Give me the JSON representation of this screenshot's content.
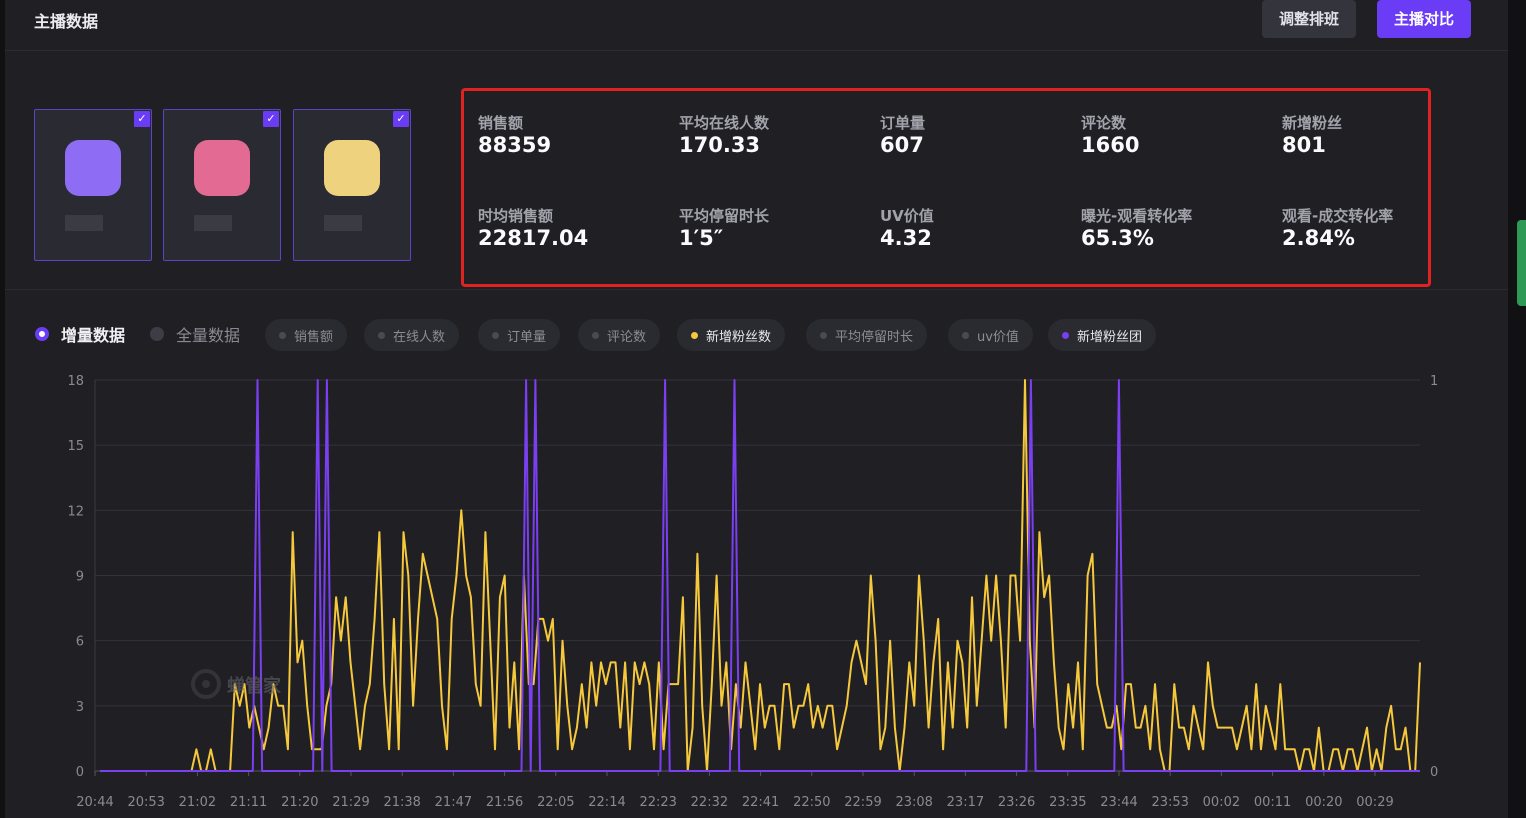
{
  "header": {
    "title": "主播数据",
    "adjust_label": "调整排班",
    "compare_label": "主播对比"
  },
  "anchors": [
    {
      "avatar_color": "#8e6cf3",
      "checked": "✓"
    },
    {
      "avatar_color": "#e36a93",
      "checked": "✓"
    },
    {
      "avatar_color": "#efd27e",
      "checked": "✓"
    }
  ],
  "stats": [
    {
      "label": "销售额",
      "value": "88359"
    },
    {
      "label": "平均在线人数",
      "value": "170.33"
    },
    {
      "label": "订单量",
      "value": "607"
    },
    {
      "label": "评论数",
      "value": "1660"
    },
    {
      "label": "新增粉丝",
      "value": "801"
    },
    {
      "label": "时均销售额",
      "value": "22817.04"
    },
    {
      "label": "平均停留时长",
      "value": "1′5″"
    },
    {
      "label": "UV价值",
      "value": "4.32"
    },
    {
      "label": "曝光-观看转化率",
      "value": "65.3%"
    },
    {
      "label": "观看-成交转化率",
      "value": "2.84%"
    }
  ],
  "mode": {
    "incremental": "增量数据",
    "full": "全量数据",
    "selected": "incremental"
  },
  "metrics": [
    {
      "label": "销售额",
      "active": false,
      "color": "#4a4a52"
    },
    {
      "label": "在线人数",
      "active": false,
      "color": "#4a4a52"
    },
    {
      "label": "订单量",
      "active": false,
      "color": "#4a4a52"
    },
    {
      "label": "评论数",
      "active": false,
      "color": "#4a4a52"
    },
    {
      "label": "新增粉丝数",
      "active": true,
      "color": "#f6c83c"
    },
    {
      "label": "平均停留时长",
      "active": false,
      "color": "#4a4a52"
    },
    {
      "label": "uv价值",
      "active": false,
      "color": "#4a4a52"
    },
    {
      "label": "新增粉丝团",
      "active": true,
      "color": "#7b3ff2"
    }
  ],
  "watermark": "蝉管家",
  "chart_data": {
    "type": "line",
    "x_tick_labels": [
      "20:44",
      "20:53",
      "21:02",
      "21:11",
      "21:20",
      "21:29",
      "21:38",
      "21:47",
      "21:56",
      "22:05",
      "22:14",
      "22:23",
      "22:32",
      "22:41",
      "22:50",
      "22:59",
      "23:08",
      "23:17",
      "23:26",
      "23:35",
      "23:44",
      "23:53",
      "00:02",
      "00:11",
      "00:20",
      "00:29"
    ],
    "y_left": {
      "ticks": [
        "0",
        "3",
        "6",
        "9",
        "12",
        "15",
        "18"
      ],
      "range": [
        0,
        18
      ]
    },
    "y_right": {
      "ticks": [
        "0",
        "1"
      ],
      "range": [
        0,
        1
      ]
    },
    "grid": true,
    "series": [
      {
        "axis": "left",
        "color": "#f6c83c",
        "values": [
          0,
          0,
          0,
          0,
          0,
          0,
          0,
          0,
          0,
          0,
          0,
          0,
          0,
          0,
          0,
          0,
          0,
          0,
          0,
          0,
          1,
          0,
          0,
          1,
          0,
          0,
          0,
          0,
          4,
          3,
          4,
          2,
          3,
          2,
          1,
          2,
          4,
          3,
          3,
          1,
          11,
          5,
          6,
          3,
          1,
          1,
          1,
          3,
          4,
          8,
          6,
          8,
          5,
          3,
          1,
          3,
          4,
          7,
          11,
          4,
          1,
          7,
          1,
          11,
          9,
          3,
          7,
          10,
          9,
          8,
          7,
          3,
          1,
          7,
          9,
          12,
          9,
          8,
          4,
          3,
          11,
          6,
          1,
          8,
          9,
          2,
          5,
          1,
          9,
          4,
          4,
          7,
          7,
          6,
          7,
          1,
          6,
          3,
          1,
          2,
          4,
          2,
          5,
          3,
          5,
          4,
          5,
          5,
          2,
          5,
          1,
          5,
          4,
          5,
          4,
          1,
          5,
          1,
          4,
          4,
          4,
          8,
          0,
          2,
          10,
          3,
          0,
          4,
          9,
          3,
          5,
          1,
          4,
          2,
          5,
          3,
          1,
          4,
          2,
          3,
          3,
          1,
          4,
          4,
          2,
          3,
          3,
          4,
          2,
          3,
          2,
          3,
          3,
          1,
          2,
          3,
          5,
          6,
          5,
          4,
          9,
          6,
          1,
          2,
          6,
          2,
          0,
          2,
          5,
          3,
          9,
          6,
          2,
          5,
          7,
          1,
          5,
          2,
          6,
          5,
          2,
          8,
          3,
          6,
          9,
          6,
          9,
          6,
          2,
          9,
          9,
          6,
          18,
          6,
          2,
          11,
          8,
          9,
          5,
          2,
          1,
          4,
          2,
          5,
          1,
          9,
          10,
          4,
          3,
          2,
          2,
          3,
          1,
          4,
          4,
          2,
          2,
          3,
          1,
          4,
          1,
          0,
          0,
          4,
          2,
          2,
          1,
          3,
          2,
          1,
          5,
          3,
          2,
          2,
          2,
          2,
          1,
          2,
          3,
          1,
          4,
          1,
          3,
          2,
          1,
          4,
          1,
          1,
          1,
          0,
          1,
          1,
          0,
          2,
          0,
          0,
          1,
          1,
          0,
          1,
          1,
          0,
          1,
          2,
          0,
          1,
          0,
          2,
          3,
          1,
          1,
          2,
          0,
          0,
          5
        ]
      },
      {
        "axis": "right",
        "color": "#7b3ff2",
        "values": [
          0,
          0,
          0,
          0,
          0,
          0,
          0,
          0,
          0,
          0,
          0,
          0,
          0,
          0,
          0,
          0,
          0,
          0,
          0,
          0,
          0,
          0,
          0,
          0,
          0,
          0,
          0,
          0,
          0,
          0,
          0,
          0,
          0,
          0,
          1,
          0,
          0,
          0,
          0,
          0,
          0,
          0,
          0,
          0,
          0,
          0,
          0,
          1,
          0,
          1,
          0,
          0,
          0,
          0,
          0,
          0,
          0,
          0,
          0,
          0,
          0,
          0,
          0,
          0,
          0,
          0,
          0,
          0,
          0,
          0,
          0,
          0,
          0,
          0,
          0,
          0,
          0,
          0,
          0,
          0,
          0,
          0,
          0,
          0,
          0,
          0,
          0,
          0,
          0,
          0,
          0,
          0,
          1,
          0,
          1,
          0,
          0,
          0,
          0,
          0,
          0,
          0,
          0,
          0,
          0,
          0,
          0,
          0,
          0,
          0,
          0,
          0,
          0,
          0,
          0,
          0,
          0,
          0,
          0,
          0,
          0,
          0,
          1,
          0,
          0,
          0,
          0,
          0,
          0,
          0,
          0,
          0,
          0,
          0,
          0,
          0,
          0,
          1,
          0,
          0,
          0,
          0,
          0,
          0,
          0,
          0,
          0,
          0,
          0,
          0,
          0,
          0,
          0,
          0,
          0,
          0,
          0,
          0,
          0,
          0,
          0,
          0,
          0,
          0,
          0,
          0,
          0,
          0,
          0,
          0,
          0,
          0,
          0,
          0,
          0,
          0,
          0,
          0,
          0,
          0,
          0,
          0,
          0,
          0,
          0,
          0,
          0,
          0,
          0,
          0,
          0,
          0,
          0,
          0,
          0,
          0,
          0,
          0,
          0,
          0,
          0,
          1,
          0,
          0,
          0,
          0,
          0,
          0,
          0,
          0,
          0,
          0,
          0,
          0,
          0,
          0,
          0,
          0,
          0,
          0,
          1,
          0,
          0,
          0,
          0,
          0,
          0,
          0,
          0,
          0,
          0,
          0,
          0,
          0,
          0,
          0,
          0,
          0,
          0,
          0,
          0,
          0,
          0,
          0,
          0,
          0,
          0,
          0,
          0,
          0,
          0,
          0,
          0,
          0,
          0,
          0,
          0,
          0,
          0,
          0,
          0,
          0,
          0,
          0,
          0,
          0,
          0,
          0,
          0,
          0,
          0,
          0,
          0,
          0,
          0,
          0,
          0,
          0,
          0,
          0,
          0,
          0,
          0,
          0,
          0,
          0
        ]
      }
    ]
  }
}
